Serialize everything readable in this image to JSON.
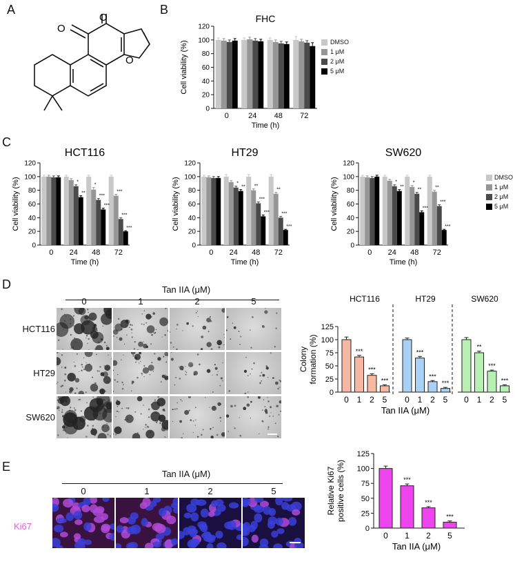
{
  "panels": {
    "A": "A",
    "B": "B",
    "C": "C",
    "D": "D",
    "E": "E"
  },
  "structure_labels": {
    "o1": "O",
    "o2": "O",
    "o3": "O"
  },
  "colors": {
    "dmso": "#c8c8c8",
    "c1": "#969696",
    "c2": "#4a4a4a",
    "c5": "#000000",
    "hct116": "#f6b8a2",
    "ht29": "#a9d0f5",
    "sw620": "#b7f0b2",
    "ki67_bar": "#ee44ee",
    "ki67_text": "#e060e0"
  },
  "viability_legend": [
    "DMSO",
    "1 μM",
    "2 μM",
    "5 μM"
  ],
  "chart_data": [
    {
      "id": "B",
      "type": "bar",
      "title": "FHC",
      "xlabel": "Time (h)",
      "ylabel": "Cell viability (%)",
      "ylim": [
        0,
        120
      ],
      "yticks": [
        0,
        20,
        40,
        60,
        80,
        100,
        120
      ],
      "categories": [
        "0",
        "24",
        "48",
        "72"
      ],
      "series": [
        {
          "name": "DMSO",
          "values": [
            100,
            100,
            100,
            100
          ],
          "err": [
            3,
            3,
            3,
            5
          ]
        },
        {
          "name": "1 μM",
          "values": [
            99,
            101,
            97,
            98
          ],
          "err": [
            3,
            3,
            3,
            3
          ]
        },
        {
          "name": "2 μM",
          "values": [
            97,
            99,
            95,
            96
          ],
          "err": [
            3,
            3,
            3,
            3
          ]
        },
        {
          "name": "5 μM",
          "values": [
            99,
            98,
            94,
            91
          ],
          "err": [
            3,
            3,
            3,
            5
          ]
        }
      ],
      "annotations": []
    },
    {
      "id": "C1",
      "type": "bar",
      "title": "HCT116",
      "xlabel": "Time (h)",
      "ylabel": "Cell viability (%)",
      "ylim": [
        0,
        120
      ],
      "yticks": [
        0,
        20,
        40,
        60,
        80,
        100,
        120
      ],
      "categories": [
        "0",
        "24",
        "48",
        "72"
      ],
      "series": [
        {
          "name": "DMSO",
          "values": [
            100,
            100,
            100,
            100
          ],
          "err": [
            2,
            2,
            2,
            2
          ]
        },
        {
          "name": "1 μM",
          "values": [
            100,
            95,
            81,
            72
          ],
          "err": [
            2,
            2,
            3,
            2
          ]
        },
        {
          "name": "2 μM",
          "values": [
            99,
            86,
            66,
            38
          ],
          "err": [
            2,
            2,
            2,
            2
          ]
        },
        {
          "name": "5 μM",
          "values": [
            99,
            70,
            52,
            20
          ],
          "err": [
            2,
            2,
            2,
            1
          ]
        }
      ],
      "annotations": [
        {
          "cat": 1,
          "series": 2,
          "text": "*"
        },
        {
          "cat": 1,
          "series": 3,
          "text": "**"
        },
        {
          "cat": 2,
          "series": 1,
          "text": "*"
        },
        {
          "cat": 2,
          "series": 2,
          "text": "***"
        },
        {
          "cat": 2,
          "series": 3,
          "text": "***"
        },
        {
          "cat": 3,
          "series": 1,
          "text": "***"
        },
        {
          "cat": 3,
          "series": 2,
          "text": "***"
        },
        {
          "cat": 3,
          "series": 3,
          "text": "***"
        }
      ]
    },
    {
      "id": "C2",
      "type": "bar",
      "title": "HT29",
      "xlabel": "Time (h)",
      "ylabel": "Cell viability (%)",
      "ylim": [
        0,
        120
      ],
      "yticks": [
        0,
        20,
        40,
        60,
        80,
        100,
        120
      ],
      "categories": [
        "0",
        "24",
        "48",
        "72"
      ],
      "series": [
        {
          "name": "DMSO",
          "values": [
            100,
            100,
            100,
            100
          ],
          "err": [
            2,
            3,
            3,
            3
          ]
        },
        {
          "name": "1 μM",
          "values": [
            99,
            92,
            80,
            75
          ],
          "err": [
            2,
            2,
            2,
            2
          ]
        },
        {
          "name": "2 μM",
          "values": [
            98,
            84,
            61,
            40
          ],
          "err": [
            2,
            2,
            2,
            2
          ]
        },
        {
          "name": "5 μM",
          "values": [
            98,
            79,
            42,
            22
          ],
          "err": [
            2,
            2,
            2,
            1
          ]
        }
      ],
      "annotations": [
        {
          "cat": 1,
          "series": 2,
          "text": "*"
        },
        {
          "cat": 1,
          "series": 3,
          "text": "**"
        },
        {
          "cat": 2,
          "series": 1,
          "text": "**"
        },
        {
          "cat": 2,
          "series": 2,
          "text": "***"
        },
        {
          "cat": 2,
          "series": 3,
          "text": "***"
        },
        {
          "cat": 3,
          "series": 1,
          "text": "**"
        },
        {
          "cat": 3,
          "series": 2,
          "text": "***"
        },
        {
          "cat": 3,
          "series": 3,
          "text": "***"
        }
      ]
    },
    {
      "id": "C3",
      "type": "bar",
      "title": "SW620",
      "xlabel": "Time (h)",
      "ylabel": "Cell viability (%)",
      "ylim": [
        0,
        120
      ],
      "yticks": [
        0,
        20,
        40,
        60,
        80,
        100,
        120
      ],
      "categories": [
        "0",
        "24",
        "48",
        "72"
      ],
      "series": [
        {
          "name": "DMSO",
          "values": [
            100,
            100,
            100,
            100
          ],
          "err": [
            2,
            2,
            2,
            2
          ]
        },
        {
          "name": "1 μM",
          "values": [
            99,
            94,
            85,
            78
          ],
          "err": [
            2,
            2,
            2,
            2
          ]
        },
        {
          "name": "2 μM",
          "values": [
            98,
            86,
            75,
            57
          ],
          "err": [
            2,
            2,
            2,
            2
          ]
        },
        {
          "name": "5 μM",
          "values": [
            100,
            79,
            48,
            22
          ],
          "err": [
            2,
            2,
            2,
            1
          ]
        }
      ],
      "annotations": [
        {
          "cat": 1,
          "series": 2,
          "text": "*"
        },
        {
          "cat": 1,
          "series": 3,
          "text": "**"
        },
        {
          "cat": 2,
          "series": 1,
          "text": "*"
        },
        {
          "cat": 2,
          "series": 2,
          "text": "**"
        },
        {
          "cat": 2,
          "series": 3,
          "text": "***"
        },
        {
          "cat": 3,
          "series": 1,
          "text": "**"
        },
        {
          "cat": 3,
          "series": 2,
          "text": "***"
        },
        {
          "cat": 3,
          "series": 3,
          "text": "***"
        }
      ]
    },
    {
      "id": "D",
      "type": "bar",
      "xlabel": "Tan IIA (μM)",
      "ylabel": "Colony formation (%)",
      "ylim": [
        0,
        125
      ],
      "yticks": [
        0,
        25,
        50,
        75,
        100,
        125
      ],
      "groups": [
        {
          "name": "HCT116",
          "categories": [
            "0",
            "1",
            "2",
            "5"
          ],
          "values": [
            100,
            67,
            32,
            12
          ],
          "err": [
            5,
            3,
            3,
            2
          ],
          "stars": [
            "",
            "***",
            "***",
            "***"
          ]
        },
        {
          "name": "HT29",
          "categories": [
            "0",
            "1",
            "2",
            "5"
          ],
          "values": [
            100,
            65,
            20,
            7
          ],
          "err": [
            3,
            3,
            2,
            2
          ],
          "stars": [
            "",
            "***",
            "***",
            "***"
          ]
        },
        {
          "name": "SW620",
          "categories": [
            "0",
            "1",
            "2",
            "5"
          ],
          "values": [
            100,
            75,
            40,
            12
          ],
          "err": [
            4,
            3,
            2,
            2
          ],
          "stars": [
            "",
            "**",
            "***",
            "***"
          ]
        }
      ]
    },
    {
      "id": "E",
      "type": "bar",
      "xlabel": "Tan IIA (μM)",
      "ylabel": "Relative Ki67 positive cells (%)",
      "ylim": [
        0,
        125
      ],
      "yticks": [
        0,
        25,
        50,
        75,
        100,
        125
      ],
      "categories": [
        "0",
        "1",
        "2",
        "5"
      ],
      "values": [
        100,
        71,
        34,
        10
      ],
      "err": [
        4,
        3,
        2,
        2
      ],
      "stars": [
        "",
        "***",
        "***",
        "***"
      ]
    }
  ],
  "panel_d": {
    "header": "Tan IIA (μM)",
    "doses": [
      "0",
      "1",
      "2",
      "5"
    ],
    "cell_lines": [
      "HCT116",
      "HT29",
      "SW620"
    ]
  },
  "panel_e": {
    "header": "Tan IIA (μM)",
    "doses": [
      "0",
      "1",
      "2",
      "5"
    ],
    "stain": "Ki67"
  }
}
